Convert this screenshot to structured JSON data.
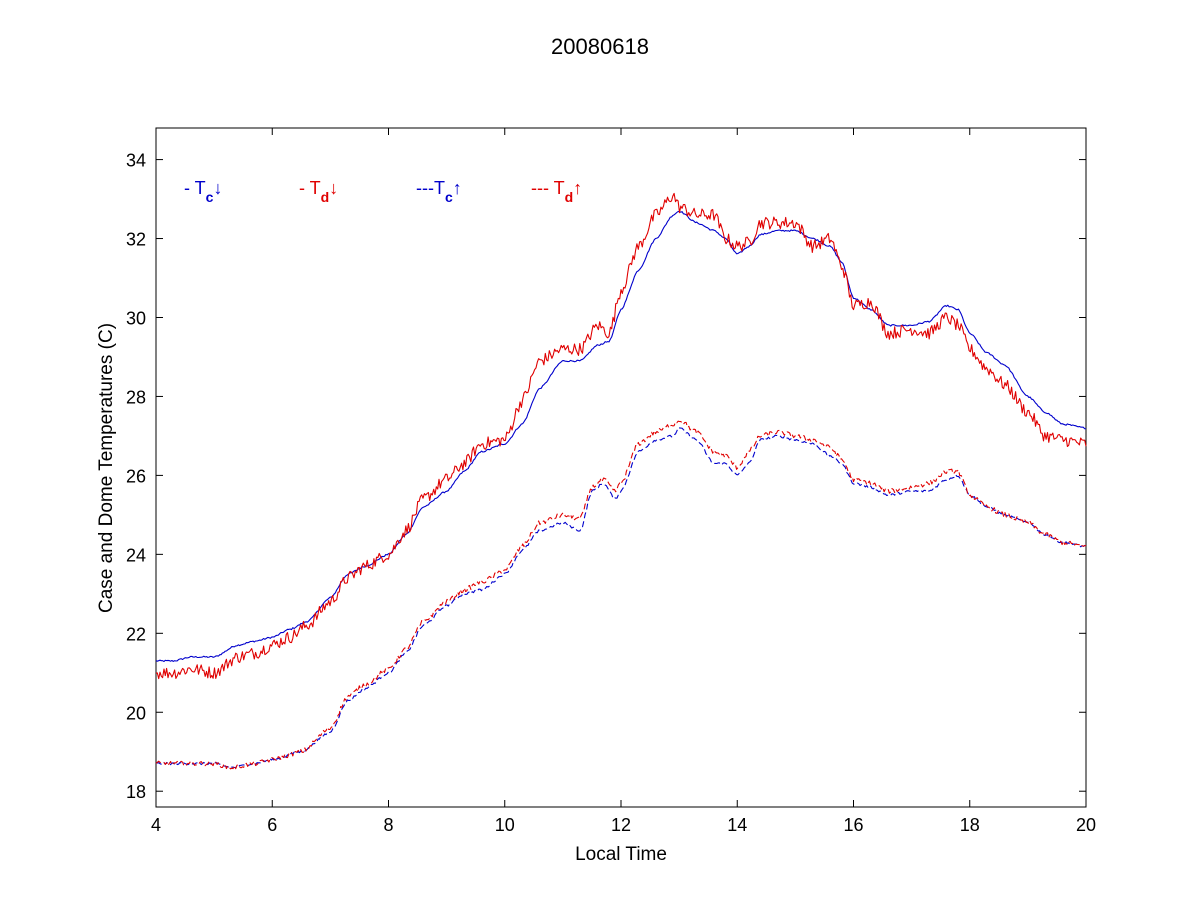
{
  "chart_data": {
    "type": "line",
    "title": "20080618",
    "xlabel": "Local Time",
    "ylabel": "Case and Dome Temperatures (C)",
    "xlim": [
      4,
      20
    ],
    "ylim": [
      17.6,
      34.8
    ],
    "xticks": [
      4,
      6,
      8,
      10,
      12,
      14,
      16,
      18,
      20
    ],
    "yticks": [
      18,
      20,
      22,
      24,
      26,
      28,
      30,
      32,
      34
    ],
    "grid": false,
    "legend_placement": "top-left",
    "legend": [
      {
        "prefix": "- T",
        "sub": "c",
        "arrow": "↓",
        "color": "#0000cc"
      },
      {
        "prefix": "- T",
        "sub": "d",
        "arrow": "↓",
        "color": "#e00000"
      },
      {
        "prefix": "---T",
        "sub": "c",
        "arrow": "↑",
        "color": "#0000cc"
      },
      {
        "prefix": "--- T",
        "sub": "d",
        "arrow": "↑",
        "color": "#e00000"
      }
    ],
    "series": [
      {
        "key": "tc_down",
        "color": "#0000cc",
        "dash": false,
        "noise": 0.02,
        "x": [
          4.0,
          4.3,
          4.6,
          5.0,
          5.4,
          5.7,
          6.0,
          6.3,
          6.6,
          7.0,
          7.3,
          7.6,
          8.0,
          8.3,
          8.6,
          9.0,
          9.3,
          9.6,
          10.0,
          10.3,
          10.6,
          11.0,
          11.3,
          11.6,
          11.8,
          12.0,
          12.3,
          12.6,
          12.9,
          13.0,
          13.3,
          13.6,
          13.8,
          14.0,
          14.2,
          14.4,
          14.7,
          15.0,
          15.3,
          15.6,
          15.8,
          16.0,
          16.3,
          16.6,
          17.0,
          17.3,
          17.6,
          17.8,
          18.0,
          18.3,
          18.6,
          19.0,
          19.3,
          19.6,
          20.0
        ],
        "y": [
          21.3,
          21.3,
          21.4,
          21.4,
          21.7,
          21.8,
          21.9,
          22.1,
          22.3,
          22.9,
          23.5,
          23.7,
          24.0,
          24.5,
          25.2,
          25.6,
          26.1,
          26.6,
          26.8,
          27.3,
          28.2,
          28.9,
          28.9,
          29.3,
          29.4,
          30.2,
          31.2,
          32.0,
          32.6,
          32.7,
          32.4,
          32.2,
          32.0,
          31.6,
          31.8,
          32.1,
          32.2,
          32.2,
          32.0,
          31.8,
          31.4,
          30.5,
          30.2,
          29.8,
          29.8,
          29.9,
          30.3,
          30.2,
          29.6,
          29.1,
          28.8,
          28.0,
          27.6,
          27.3,
          27.2
        ]
      },
      {
        "key": "td_down",
        "color": "#e00000",
        "dash": false,
        "noise": 0.16,
        "x": [
          4.0,
          4.3,
          4.6,
          5.0,
          5.4,
          5.7,
          6.0,
          6.3,
          6.6,
          7.0,
          7.3,
          7.6,
          8.0,
          8.3,
          8.6,
          9.0,
          9.3,
          9.6,
          10.0,
          10.3,
          10.6,
          11.0,
          11.3,
          11.6,
          11.8,
          12.0,
          12.3,
          12.6,
          12.9,
          13.0,
          13.3,
          13.6,
          13.8,
          14.0,
          14.2,
          14.4,
          14.7,
          15.0,
          15.3,
          15.6,
          15.8,
          16.0,
          16.3,
          16.6,
          17.0,
          17.3,
          17.6,
          17.8,
          18.0,
          18.3,
          18.6,
          19.0,
          19.3,
          19.6,
          20.0
        ],
        "y": [
          21.0,
          21.0,
          21.1,
          21.0,
          21.4,
          21.5,
          21.7,
          21.9,
          22.2,
          22.8,
          23.4,
          23.7,
          24.0,
          24.6,
          25.4,
          25.9,
          26.3,
          26.8,
          26.9,
          27.9,
          28.9,
          29.2,
          29.2,
          29.8,
          29.6,
          30.7,
          31.8,
          32.6,
          33.1,
          32.8,
          32.6,
          32.6,
          32.0,
          31.8,
          31.9,
          32.4,
          32.4,
          32.4,
          31.8,
          32.0,
          31.3,
          30.3,
          30.4,
          29.6,
          29.7,
          29.6,
          30.0,
          29.8,
          29.2,
          28.7,
          28.3,
          27.6,
          27.0,
          26.9,
          26.8
        ]
      },
      {
        "key": "tc_up",
        "color": "#0000cc",
        "dash": true,
        "noise": 0.03,
        "x": [
          4.0,
          4.5,
          5.0,
          5.3,
          5.7,
          6.0,
          6.5,
          7.0,
          7.3,
          7.6,
          8.0,
          8.3,
          8.6,
          9.0,
          9.3,
          9.6,
          10.0,
          10.3,
          10.6,
          11.0,
          11.3,
          11.5,
          11.7,
          11.9,
          12.0,
          12.3,
          12.6,
          12.9,
          13.0,
          13.3,
          13.6,
          13.8,
          14.0,
          14.2,
          14.4,
          14.7,
          15.0,
          15.3,
          15.6,
          15.8,
          16.0,
          16.3,
          16.6,
          17.0,
          17.3,
          17.6,
          17.8,
          18.0,
          18.3,
          18.6,
          19.0,
          19.3,
          19.6,
          20.0
        ],
        "y": [
          18.7,
          18.7,
          18.7,
          18.6,
          18.7,
          18.8,
          19.0,
          19.5,
          20.3,
          20.6,
          21.0,
          21.5,
          22.2,
          22.7,
          23.0,
          23.1,
          23.5,
          24.1,
          24.6,
          24.8,
          24.6,
          25.6,
          25.8,
          25.4,
          25.6,
          26.6,
          26.9,
          27.0,
          27.2,
          26.9,
          26.3,
          26.3,
          26.0,
          26.3,
          26.9,
          27.0,
          26.9,
          26.8,
          26.5,
          26.3,
          25.8,
          25.7,
          25.5,
          25.6,
          25.6,
          25.9,
          26.0,
          25.5,
          25.2,
          25.0,
          24.8,
          24.5,
          24.3,
          24.2
        ]
      },
      {
        "key": "td_up",
        "color": "#e00000",
        "dash": true,
        "noise": 0.06,
        "x": [
          4.0,
          4.5,
          5.0,
          5.3,
          5.7,
          6.0,
          6.5,
          7.0,
          7.3,
          7.6,
          8.0,
          8.3,
          8.6,
          9.0,
          9.3,
          9.6,
          10.0,
          10.3,
          10.6,
          11.0,
          11.3,
          11.5,
          11.7,
          11.9,
          12.0,
          12.3,
          12.6,
          12.9,
          13.0,
          13.3,
          13.6,
          13.8,
          14.0,
          14.2,
          14.4,
          14.7,
          15.0,
          15.3,
          15.6,
          15.8,
          16.0,
          16.3,
          16.6,
          17.0,
          17.3,
          17.6,
          17.8,
          18.0,
          18.3,
          18.6,
          19.0,
          19.3,
          19.6,
          20.0
        ],
        "y": [
          18.7,
          18.7,
          18.7,
          18.6,
          18.7,
          18.8,
          19.0,
          19.6,
          20.4,
          20.7,
          21.1,
          21.6,
          22.3,
          22.8,
          23.1,
          23.3,
          23.6,
          24.2,
          24.8,
          25.0,
          24.9,
          25.7,
          25.9,
          25.6,
          25.8,
          26.8,
          27.1,
          27.3,
          27.4,
          27.1,
          26.6,
          26.5,
          26.2,
          26.6,
          27.0,
          27.1,
          27.0,
          26.9,
          26.7,
          26.4,
          25.9,
          25.8,
          25.6,
          25.7,
          25.8,
          26.1,
          26.1,
          25.5,
          25.2,
          25.0,
          24.8,
          24.5,
          24.3,
          24.2
        ]
      }
    ]
  }
}
